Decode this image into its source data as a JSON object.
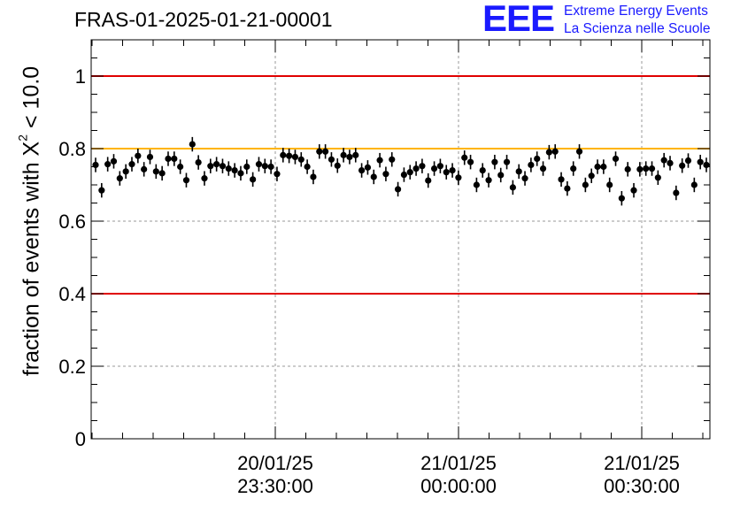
{
  "title": "FRAS-01-2025-01-21-00001",
  "logo": {
    "mark": "EEE",
    "line1": "Extreme Energy Events",
    "line2": "La Scienza nelle Scuole"
  },
  "ylabel": {
    "prefix": "fraction of events with X",
    "sup": "2",
    "suffix": " < 10.0"
  },
  "colors": {
    "limit_lines": "#e00000",
    "reference_line": "#ffb400",
    "markers": "#000000",
    "grid": "#9a9a9a"
  },
  "chart_data": {
    "type": "scatter",
    "title": "FRAS-01-2025-01-21-00001",
    "ylabel": "fraction of events with X^2 < 10.0",
    "ylim": [
      0,
      1.1
    ],
    "yticks": [
      0,
      0.2,
      0.4,
      0.6,
      0.8,
      1
    ],
    "ytick_labels": [
      "0",
      "0.2",
      "0.4",
      "0.6",
      "0.8",
      "1"
    ],
    "xlim_time": [
      "20/01/25 23:00:28",
      "21/01/25 00:51:00"
    ],
    "xticks": [
      {
        "date": "20/01/25",
        "time": "23:30:00"
      },
      {
        "date": "21/01/25",
        "time": "00:00:00"
      },
      {
        "date": "21/01/25",
        "time": "00:30:00"
      }
    ],
    "grid": true,
    "horizontal_lines": [
      {
        "y": 1.0,
        "color": "red"
      },
      {
        "y": 0.8,
        "color": "orange"
      },
      {
        "y": 0.4,
        "color": "red"
      }
    ],
    "error_bar": 0.02,
    "series": [
      {
        "values": [
          0.755,
          0.685,
          0.757,
          0.765,
          0.718,
          0.737,
          0.757,
          0.78,
          0.743,
          0.777,
          0.737,
          0.732,
          0.772,
          0.772,
          0.75,
          0.713,
          0.812,
          0.762,
          0.718,
          0.752,
          0.757,
          0.752,
          0.745,
          0.74,
          0.732,
          0.75,
          0.715,
          0.757,
          0.752,
          0.75,
          0.73,
          0.782,
          0.78,
          0.777,
          0.77,
          0.75,
          0.722,
          0.792,
          0.792,
          0.77,
          0.753,
          0.782,
          0.777,
          0.782,
          0.74,
          0.748,
          0.722,
          0.768,
          0.73,
          0.77,
          0.688,
          0.728,
          0.735,
          0.745,
          0.752,
          0.712,
          0.745,
          0.752,
          0.735,
          0.74,
          0.72,
          0.775,
          0.763,
          0.7,
          0.74,
          0.713,
          0.763,
          0.727,
          0.763,
          0.693,
          0.737,
          0.718,
          0.755,
          0.772,
          0.745,
          0.79,
          0.792,
          0.715,
          0.69,
          0.745,
          0.792,
          0.7,
          0.725,
          0.75,
          0.75,
          0.7,
          0.772,
          0.663,
          0.743,
          0.685,
          0.743,
          0.745,
          0.745,
          0.72,
          0.768,
          0.76,
          0.678,
          0.753,
          0.767,
          0.7,
          0.763,
          0.755
        ]
      }
    ]
  }
}
